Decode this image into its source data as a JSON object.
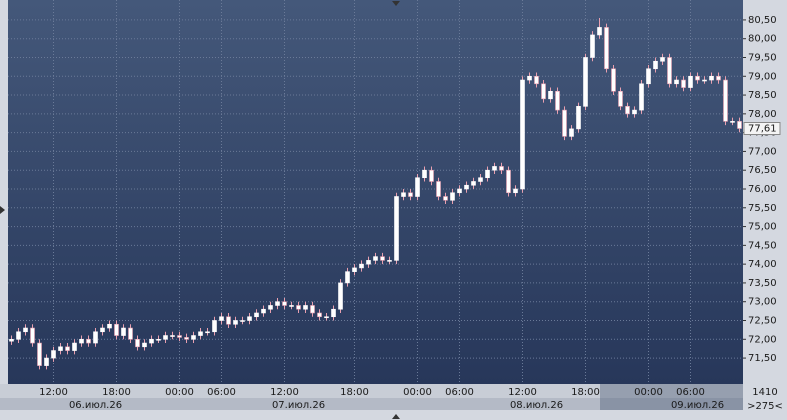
{
  "chart_data": {
    "type": "candlestick",
    "categories": [
      null,
      null,
      null,
      null,
      null,
      null,
      "12:00",
      null,
      null,
      null,
      null,
      null,
      null,
      null,
      null,
      "18:00",
      null,
      null,
      null,
      null,
      null,
      null,
      null,
      null,
      "00:00",
      null,
      null,
      null,
      null,
      null,
      "06:00",
      null,
      null,
      null,
      null,
      null,
      null,
      null,
      null,
      "12:00",
      null,
      null,
      null,
      null,
      null,
      null,
      null,
      null,
      null,
      "18:00",
      null,
      null,
      null,
      null,
      null,
      null,
      null,
      null,
      "00:00",
      null,
      null,
      null,
      null,
      null,
      "06:00",
      null,
      null,
      null,
      null,
      null,
      null,
      null,
      null,
      "12:00",
      null,
      null,
      null,
      null,
      null,
      null,
      null,
      null,
      "18:00",
      null,
      null,
      null,
      null,
      null,
      null,
      null,
      null,
      "00:00",
      null,
      null,
      null,
      null,
      null,
      "06:00",
      null,
      null,
      null,
      null,
      null,
      null,
      null
    ],
    "dates": [
      null,
      null,
      null,
      null,
      null,
      null,
      null,
      null,
      null,
      null,
      null,
      null,
      "06.июл.26",
      null,
      null,
      null,
      null,
      null,
      null,
      null,
      null,
      null,
      null,
      null,
      null,
      null,
      null,
      null,
      null,
      null,
      null,
      null,
      null,
      null,
      null,
      null,
      null,
      null,
      null,
      null,
      null,
      "07.июл.26",
      null,
      null,
      null,
      null,
      null,
      null,
      null,
      null,
      null,
      null,
      null,
      null,
      null,
      null,
      null,
      null,
      null,
      null,
      null,
      null,
      null,
      null,
      null,
      null,
      null,
      null,
      null,
      null,
      null,
      null,
      null,
      null,
      null,
      "08.июл.26",
      null,
      null,
      null,
      null,
      null,
      null,
      null,
      null,
      null,
      null,
      null,
      null,
      null,
      null,
      null,
      null,
      null,
      null,
      null,
      null,
      null,
      null,
      "09.июл.26",
      null,
      null,
      null,
      null,
      null,
      null
    ],
    "open": [
      71.95,
      72.0,
      72.2,
      72.3,
      71.9,
      71.3,
      71.5,
      71.7,
      71.8,
      71.7,
      71.9,
      72.0,
      71.9,
      72.2,
      72.3,
      72.4,
      72.1,
      72.3,
      72.0,
      71.8,
      71.9,
      72.0,
      72.0,
      72.1,
      72.1,
      72.05,
      72.0,
      72.1,
      72.2,
      72.2,
      72.5,
      72.6,
      72.4,
      72.5,
      72.5,
      72.6,
      72.7,
      72.8,
      72.9,
      73.0,
      72.9,
      72.9,
      72.8,
      72.9,
      72.7,
      72.6,
      72.6,
      72.8,
      73.5,
      73.8,
      73.9,
      74.0,
      74.1,
      74.2,
      74.1,
      74.1,
      75.8,
      75.9,
      75.8,
      76.3,
      76.5,
      76.2,
      75.8,
      75.7,
      75.9,
      76.0,
      76.1,
      76.2,
      76.3,
      76.5,
      76.6,
      76.5,
      75.9,
      76.0,
      78.9,
      79.0,
      78.8,
      78.4,
      78.6,
      78.1,
      77.4,
      77.6,
      78.2,
      79.5,
      80.1,
      80.3,
      79.2,
      78.6,
      78.2,
      78.0,
      78.1,
      78.8,
      79.2,
      79.4,
      79.5,
      78.8,
      78.9,
      78.7,
      79.0,
      78.9,
      78.9,
      79.0,
      78.9,
      77.8,
      77.8
    ],
    "high": [
      72.1,
      72.3,
      72.4,
      72.4,
      72.0,
      71.6,
      71.8,
      71.9,
      71.9,
      72.0,
      72.1,
      72.1,
      72.3,
      72.4,
      72.5,
      72.5,
      72.4,
      72.4,
      72.1,
      72.0,
      72.1,
      72.1,
      72.2,
      72.2,
      72.2,
      72.15,
      72.2,
      72.3,
      72.3,
      72.6,
      72.7,
      72.7,
      72.6,
      72.6,
      72.7,
      72.8,
      72.9,
      73.0,
      73.1,
      73.1,
      73.0,
      73.0,
      73.0,
      73.0,
      72.8,
      72.7,
      72.9,
      73.6,
      73.9,
      74.0,
      74.1,
      74.2,
      74.3,
      74.3,
      74.2,
      75.9,
      76.0,
      76.0,
      76.4,
      76.6,
      76.6,
      76.3,
      75.9,
      76.0,
      76.1,
      76.2,
      76.3,
      76.4,
      76.6,
      76.7,
      76.7,
      76.6,
      76.1,
      79.0,
      79.1,
      79.1,
      78.9,
      78.7,
      78.7,
      78.2,
      77.7,
      78.3,
      79.6,
      80.2,
      80.55,
      80.4,
      79.3,
      78.7,
      78.3,
      78.2,
      78.9,
      79.3,
      79.5,
      79.6,
      79.6,
      79.0,
      79.0,
      79.1,
      79.1,
      79.0,
      79.1,
      79.1,
      79.0,
      77.9,
      77.9
    ],
    "low": [
      71.85,
      71.9,
      72.1,
      71.8,
      71.2,
      71.2,
      71.4,
      71.6,
      71.6,
      71.6,
      71.8,
      71.8,
      71.8,
      72.1,
      72.2,
      72.0,
      72.0,
      71.9,
      71.7,
      71.7,
      71.8,
      71.9,
      71.9,
      72.0,
      71.95,
      71.9,
      71.9,
      72.0,
      72.1,
      72.1,
      72.4,
      72.3,
      72.3,
      72.4,
      72.4,
      72.5,
      72.6,
      72.7,
      72.8,
      72.8,
      72.8,
      72.7,
      72.7,
      72.6,
      72.5,
      72.5,
      72.5,
      72.7,
      73.4,
      73.7,
      73.8,
      73.9,
      74.0,
      74.0,
      74.0,
      74.0,
      75.7,
      75.7,
      75.7,
      76.2,
      76.1,
      75.7,
      75.6,
      75.6,
      75.8,
      75.9,
      76.0,
      76.1,
      76.2,
      76.4,
      76.4,
      75.8,
      75.8,
      75.9,
      78.8,
      78.7,
      78.3,
      78.3,
      78.0,
      77.3,
      77.3,
      77.5,
      78.1,
      79.4,
      80.0,
      79.1,
      78.5,
      78.1,
      77.9,
      77.9,
      78.0,
      78.7,
      79.1,
      79.3,
      78.7,
      78.7,
      78.6,
      78.6,
      78.8,
      78.8,
      78.8,
      78.8,
      77.7,
      77.7,
      77.51
    ],
    "close": [
      72.0,
      72.2,
      72.3,
      71.9,
      71.3,
      71.5,
      71.7,
      71.8,
      71.7,
      71.9,
      72.0,
      71.9,
      72.2,
      72.3,
      72.4,
      72.1,
      72.3,
      72.0,
      71.8,
      71.9,
      72.0,
      72.0,
      72.1,
      72.1,
      72.05,
      72.0,
      72.1,
      72.2,
      72.2,
      72.5,
      72.6,
      72.4,
      72.5,
      72.5,
      72.6,
      72.7,
      72.8,
      72.9,
      73.0,
      72.9,
      72.9,
      72.8,
      72.9,
      72.7,
      72.6,
      72.6,
      72.8,
      73.5,
      73.8,
      73.9,
      74.0,
      74.1,
      74.2,
      74.1,
      74.1,
      75.8,
      75.9,
      75.8,
      76.3,
      76.5,
      76.2,
      75.8,
      75.7,
      75.9,
      76.0,
      76.1,
      76.2,
      76.3,
      76.5,
      76.6,
      76.5,
      75.9,
      76.0,
      78.9,
      79.0,
      78.8,
      78.4,
      78.6,
      78.1,
      77.4,
      77.6,
      78.2,
      79.5,
      80.1,
      80.3,
      79.2,
      78.6,
      78.2,
      78.0,
      78.1,
      78.8,
      79.2,
      79.4,
      79.5,
      78.8,
      78.9,
      78.7,
      79.0,
      78.9,
      78.9,
      79.0,
      78.9,
      77.8,
      77.8,
      77.61
    ],
    "up_color": "#ffffff",
    "down_color": "#ffffff",
    "wick_color": "#e8a0b0",
    "ylim": [
      70.81,
      81.03
    ],
    "yticks": [
      {
        "value": 71.5,
        "label": "71,50"
      },
      {
        "value": 72,
        "label": "72,00"
      },
      {
        "value": 72.5,
        "label": "72,50"
      },
      {
        "value": 73,
        "label": "73,00"
      },
      {
        "value": 73.5,
        "label": "73,50"
      },
      {
        "value": 74,
        "label": "74,00"
      },
      {
        "value": 74.5,
        "label": "74,50"
      },
      {
        "value": 75,
        "label": "75,00"
      },
      {
        "value": 75.5,
        "label": "75,50"
      },
      {
        "value": 76,
        "label": "76,00"
      },
      {
        "value": 76.5,
        "label": "76,50"
      },
      {
        "value": 77,
        "label": "77,00"
      },
      {
        "value": 77.5,
        "label": "77,50"
      },
      {
        "value": 78,
        "label": "78,00"
      },
      {
        "value": 78.5,
        "label": "78,50"
      },
      {
        "value": 79,
        "label": "79,00"
      },
      {
        "value": 79.5,
        "label": "79,50"
      },
      {
        "value": 80,
        "label": "80,00"
      },
      {
        "value": 80.5,
        "label": "80,50"
      }
    ],
    "last_price": {
      "value": 77.61,
      "label": "77,61"
    },
    "corner_labels": [
      "1410",
      ">275<"
    ],
    "grid": true
  }
}
